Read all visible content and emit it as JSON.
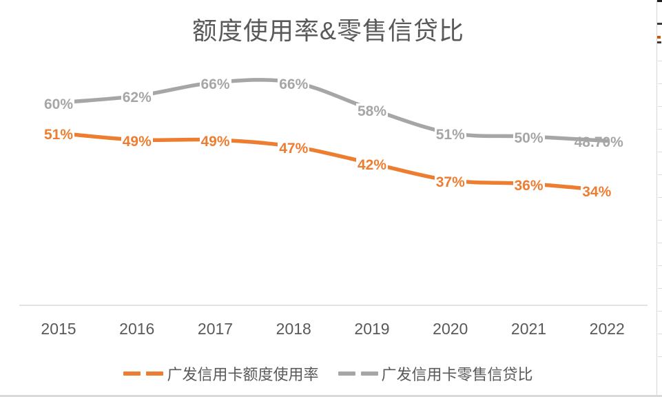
{
  "chart_data": {
    "type": "line",
    "title": "额度使用率&零售信贷比",
    "categories": [
      "2015",
      "2016",
      "2017",
      "2018",
      "2019",
      "2020",
      "2021",
      "2022"
    ],
    "series": [
      {
        "name": "广发信用卡额度使用率",
        "color": "#ED7D31",
        "values": [
          51,
          49,
          49,
          47,
          42,
          37,
          36,
          34
        ],
        "point_labels": [
          "51%",
          "49%",
          "49%",
          "47%",
          "42%",
          "37%",
          "36%",
          "34%"
        ]
      },
      {
        "name": "广发信用卡零售信贷比",
        "color": "#A6A6A6",
        "values": [
          60,
          62,
          66,
          66,
          58,
          51,
          50,
          48.7
        ],
        "point_labels": [
          "60%",
          "62%",
          "66%",
          "66%",
          "58%",
          "51%",
          "50%",
          "48.70%"
        ]
      }
    ],
    "xlabel": "",
    "ylabel": "",
    "ylim": [
      0,
      80
    ],
    "grid": false,
    "legend_position": "bottom",
    "axis_line_color": "#D9D9D9",
    "text_color": "#595959",
    "background_color": "#FFFFFF"
  }
}
